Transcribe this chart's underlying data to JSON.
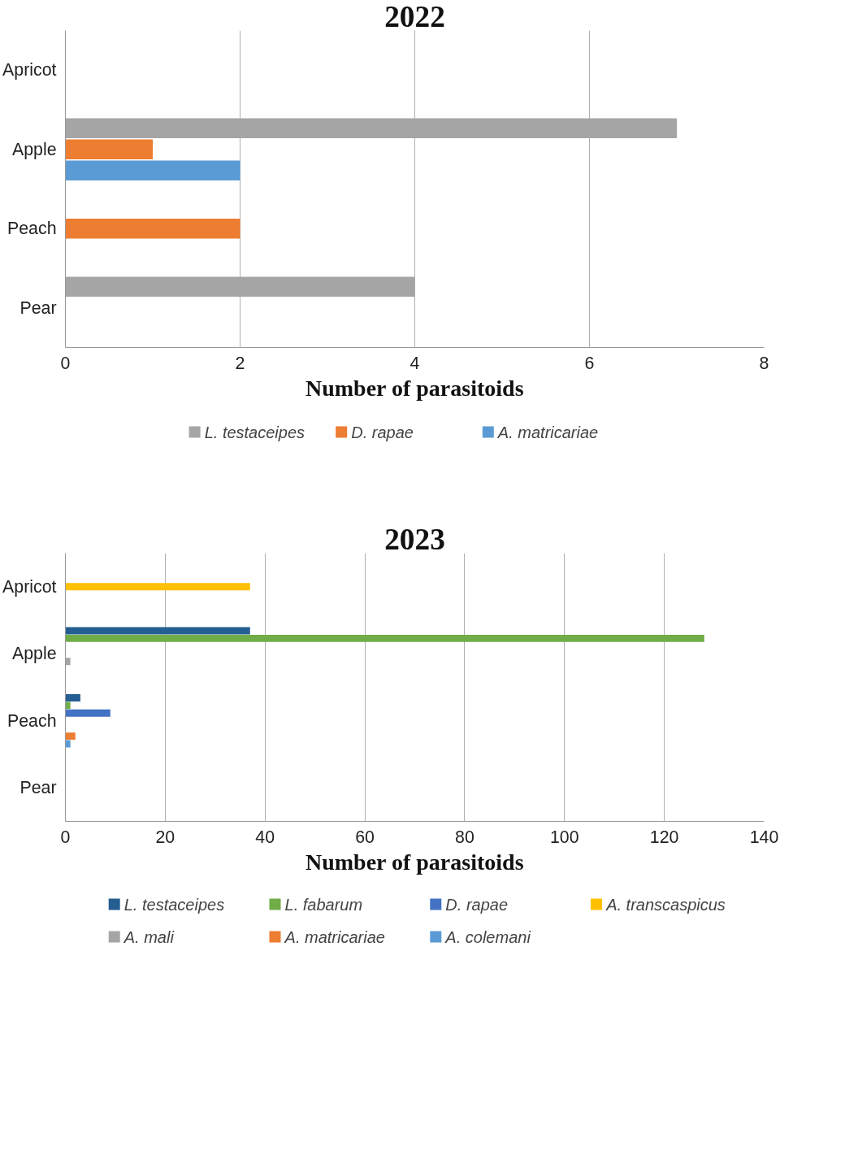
{
  "chart_data": [
    {
      "type": "bar",
      "orientation": "horizontal",
      "title": "2022",
      "xlabel": "Number of parasitoids",
      "categories": [
        "Apricot",
        "Apple",
        "Peach",
        "Pear"
      ],
      "xlim": [
        0,
        8
      ],
      "xticks": [
        0,
        2,
        4,
        6,
        8
      ],
      "grid": "x",
      "legend": "bottom",
      "series": [
        {
          "name": "L. testaceipes",
          "color": "#a5a5a5",
          "values": [
            0,
            7,
            0,
            4
          ]
        },
        {
          "name": "D. rapae",
          "color": "#ed7d31",
          "values": [
            0,
            1,
            2,
            0
          ]
        },
        {
          "name": "A. matricariae",
          "color": "#5b9bd5",
          "values": [
            0,
            2,
            0,
            0
          ]
        }
      ]
    },
    {
      "type": "bar",
      "orientation": "horizontal",
      "title": "2023",
      "xlabel": "Number of parasitoids",
      "categories": [
        "Apricot",
        "Apple",
        "Peach",
        "Pear"
      ],
      "xlim": [
        0,
        140
      ],
      "xticks": [
        0,
        20,
        40,
        60,
        80,
        100,
        120,
        140
      ],
      "grid": "x",
      "legend": "bottom",
      "series": [
        {
          "name": "L. testaceipes",
          "color": "#255e91",
          "values": [
            0,
            37,
            3,
            0
          ]
        },
        {
          "name": "L. fabarum",
          "color": "#70ad47",
          "values": [
            0,
            128,
            1,
            0
          ]
        },
        {
          "name": "D. rapae",
          "color": "#4472c4",
          "values": [
            0,
            0,
            9,
            0
          ]
        },
        {
          "name": "A. transcaspicus",
          "color": "#ffc000",
          "values": [
            37,
            0,
            0,
            0
          ]
        },
        {
          "name": "A. mali",
          "color": "#a5a5a5",
          "values": [
            0,
            1,
            0,
            0
          ]
        },
        {
          "name": "A. matricariae",
          "color": "#ed7d31",
          "values": [
            0,
            0,
            2,
            0
          ]
        },
        {
          "name": "A. colemani",
          "color": "#5b9bd5",
          "values": [
            0,
            0,
            1,
            0
          ]
        }
      ]
    }
  ]
}
